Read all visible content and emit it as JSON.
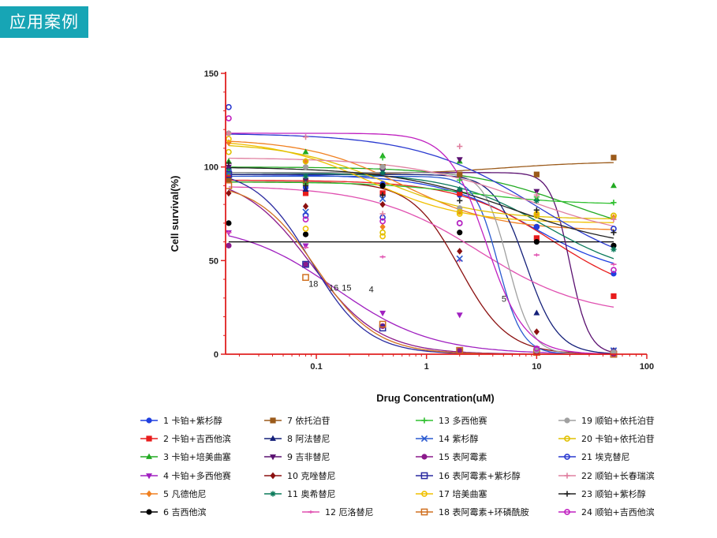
{
  "header": {
    "title": "应用案例",
    "accent": "#17a5b5"
  },
  "chart_data": {
    "type": "line",
    "xscale": "log",
    "xlabel": "Drug Concentration(uM)",
    "ylabel": "Cell survival(%)",
    "xlim": [
      0.015,
      100
    ],
    "ylim": [
      0,
      150
    ],
    "x_ticks": [
      "0.1",
      "1",
      "10",
      "100"
    ],
    "x_tick_values": [
      0.1,
      1,
      10,
      100
    ],
    "y_ticks": [
      "0",
      "50",
      "100",
      "150"
    ],
    "y_tick_values": [
      0,
      50,
      100,
      150
    ],
    "x": [
      0.016,
      0.08,
      0.4,
      2,
      10,
      50
    ],
    "annotations": [
      {
        "text": "18",
        "x": 0.085,
        "y": 36
      },
      {
        "text": "16",
        "x": 0.13,
        "y": 34
      },
      {
        "text": "15",
        "x": 0.17,
        "y": 34
      },
      {
        "text": "4",
        "x": 0.3,
        "y": 33
      },
      {
        "text": "5",
        "x": 4.8,
        "y": 28
      }
    ],
    "series": [
      {
        "num": "1",
        "name": "卡铂+紫杉醇",
        "color": "#1f3fe0",
        "marker": "circle",
        "label_color": "#111",
        "values": [
          97,
          89,
          91,
          85,
          68,
          43
        ],
        "fit": [
          96,
          40,
          1.0,
          9
        ]
      },
      {
        "num": "2",
        "name": "卡铂+吉西他滨",
        "color": "#e81c1c",
        "marker": "square",
        "label_color": "#111",
        "values": [
          95,
          86,
          86,
          86,
          62,
          31
        ],
        "fit": [
          93,
          28,
          1.0,
          14
        ]
      },
      {
        "num": "3",
        "name": "卡铂+培美曲塞",
        "color": "#22aa22",
        "marker": "triangle-up",
        "label_color": "#111",
        "values": [
          103,
          108,
          106,
          103,
          83,
          90
        ],
        "fit": [
          100,
          60,
          0.9,
          20
        ]
      },
      {
        "num": "4",
        "name": "卡铂+多西他赛",
        "color": "#a020c0",
        "marker": "triangle-down",
        "label_color": "#e81c1c",
        "values": [
          65,
          58,
          22,
          21,
          3,
          1
        ],
        "fit": [
          70,
          0,
          1.0,
          0.15
        ]
      },
      {
        "num": "5",
        "name": "凡德他尼",
        "color": "#f08020",
        "marker": "diamond",
        "label_color": "#e81c1c",
        "values": [
          113,
          103,
          68,
          76,
          75,
          73
        ],
        "fit": [
          115,
          66,
          1.0,
          0.6
        ]
      },
      {
        "num": "6",
        "name": "吉西他滨",
        "color": "#000000",
        "marker": "circle",
        "label_color": "#111",
        "values": [
          70,
          64,
          90,
          65,
          60,
          58
        ],
        "fit": [
          60,
          60,
          1.0,
          1
        ]
      },
      {
        "num": "7",
        "name": "依托泊苷",
        "color": "#9b5a1a",
        "marker": "square",
        "label_color": "#111",
        "values": [
          93,
          92,
          100,
          96,
          96,
          105
        ],
        "fit": [
          96,
          103,
          1.0,
          5
        ]
      },
      {
        "num": "8",
        "name": "阿法替尼",
        "color": "#14207a",
        "marker": "triangle-up",
        "label_color": "#111",
        "values": [
          100,
          88,
          97,
          88,
          22,
          2
        ],
        "fit": [
          96,
          0,
          3.0,
          8
        ]
      },
      {
        "num": "9",
        "name": "吉非替尼",
        "color": "#5a1070",
        "marker": "triangle-down",
        "label_color": "#111",
        "values": [
          100,
          93,
          98,
          104,
          87,
          2
        ],
        "fit": [
          97,
          0,
          5.0,
          20
        ]
      },
      {
        "num": "10",
        "name": "克唑替尼",
        "color": "#8b1010",
        "marker": "diamond",
        "label_color": "#111",
        "values": [
          86,
          79,
          80,
          55,
          12,
          1
        ],
        "fit": [
          92,
          0,
          2.0,
          2.0
        ]
      },
      {
        "num": "11",
        "name": "奥希替尼",
        "color": "#0a7a5a",
        "marker": "star",
        "label_color": "#111",
        "values": [
          98,
          95,
          97,
          88,
          82,
          56
        ],
        "fit": [
          97,
          40,
          1.0,
          12
        ]
      },
      {
        "num": "12",
        "name": "厄洛替尼",
        "color": "#e050b0",
        "marker": "dash",
        "label_color": "#111",
        "values": [
          65,
          57,
          52,
          50,
          53,
          48
        ],
        "fit": [
          90,
          20,
          0.9,
          3
        ]
      },
      {
        "num": "13",
        "name": "多西他赛",
        "color": "#30c030",
        "marker": "plus",
        "label_color": "#111",
        "values": [
          97,
          91,
          105,
          93,
          84,
          81
        ],
        "fit": [
          92,
          80,
          1.0,
          2.5
        ]
      },
      {
        "num": "14",
        "name": "紫杉醇",
        "color": "#2a5ad0",
        "marker": "x",
        "label_color": "#111",
        "values": [
          97,
          76,
          83,
          51,
          2,
          2
        ],
        "fit": [
          95,
          0,
          4.0,
          4.5
        ]
      },
      {
        "num": "15",
        "name": "表阿霉素",
        "color": "#8b1a8b",
        "marker": "circle",
        "label_color": "#e81c1c",
        "values": [
          58,
          48,
          15,
          2,
          1,
          0
        ],
        "fit": [
          96,
          0,
          1.4,
          0.09
        ]
      },
      {
        "num": "16",
        "name": "表阿霉素+紫杉醇",
        "color": "#2a2aa0",
        "marker": "square-open",
        "label_color": "#e81c1c",
        "values": [
          96,
          48,
          14,
          2,
          1,
          0
        ],
        "fit": [
          99,
          0,
          1.7,
          0.09
        ]
      },
      {
        "num": "17",
        "name": "培美曲塞",
        "color": "#f0c000",
        "marker": "circle-open",
        "label_color": "#111",
        "values": [
          115,
          67,
          63,
          75,
          75,
          74
        ],
        "fit": [
          115,
          70,
          1.0,
          0.3
        ]
      },
      {
        "num": "18",
        "name": "表阿霉素+环磷酰胺",
        "color": "#d07020",
        "marker": "square-open",
        "label_color": "#e81c1c",
        "values": [
          90,
          41,
          16,
          2,
          1,
          0
        ],
        "fit": [
          92,
          0,
          1.6,
          0.1
        ]
      },
      {
        "num": "19",
        "name": "顺铂+依托泊苷",
        "color": "#a0a0a0",
        "marker": "circle",
        "label_color": "#111",
        "values": [
          118,
          100,
          100,
          78,
          2,
          1
        ],
        "fit": [
          97,
          0,
          4.0,
          5.5
        ]
      },
      {
        "num": "20",
        "name": "卡铂+依托泊苷",
        "color": "#e0c000",
        "marker": "circle-open",
        "label_color": "#111",
        "values": [
          108,
          103,
          65,
          76,
          74,
          74
        ],
        "fit": [
          113,
          72,
          1.0,
          0.4
        ]
      },
      {
        "num": "21",
        "name": "埃克替尼",
        "color": "#2a3ad0",
        "marker": "circle-open",
        "label_color": "#111",
        "values": [
          132,
          74,
          73,
          70,
          68,
          67
        ],
        "fit": [
          118,
          40,
          0.8,
          10
        ]
      },
      {
        "num": "22",
        "name": "顺铂+长春瑞滨",
        "color": "#e080a0",
        "marker": "plus",
        "label_color": "#111",
        "values": [
          118,
          116,
          75,
          111,
          85,
          72
        ],
        "fit": [
          105,
          60,
          0.8,
          8
        ]
      },
      {
        "num": "23",
        "name": "顺铂+紫杉醇",
        "color": "#222222",
        "marker": "plus",
        "label_color": "#111",
        "values": [
          102,
          90,
          85,
          82,
          77,
          65
        ],
        "fit": [
          100,
          55,
          0.8,
          6
        ]
      },
      {
        "num": "24",
        "name": "顺铂+吉西他滨",
        "color": "#c020c0",
        "marker": "circle-open",
        "label_color": "#111",
        "values": [
          126,
          72,
          71,
          70,
          3,
          45
        ],
        "fit": [
          118,
          0,
          2.5,
          3.5
        ]
      }
    ]
  }
}
